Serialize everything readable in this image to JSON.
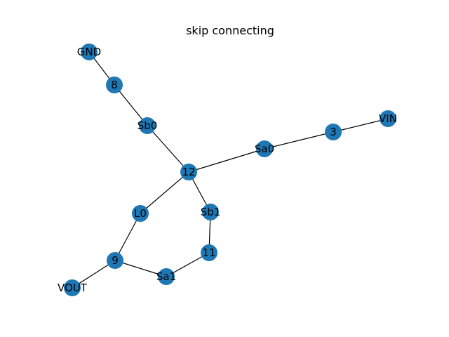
{
  "title": "skip connecting",
  "style": {
    "node_color": "#1f77b4",
    "edge_color": "#000000",
    "label_color": "#000000",
    "background": "#ffffff"
  },
  "graph": {
    "nodes": [
      {
        "id": "GND",
        "label": "GND"
      },
      {
        "id": "8",
        "label": "8"
      },
      {
        "id": "Sb0",
        "label": "Sb0"
      },
      {
        "id": "12",
        "label": "12"
      },
      {
        "id": "Sa0",
        "label": "Sa0"
      },
      {
        "id": "3",
        "label": "3"
      },
      {
        "id": "VIN",
        "label": "VIN"
      },
      {
        "id": "L0",
        "label": "L0"
      },
      {
        "id": "Sb1",
        "label": "Sb1"
      },
      {
        "id": "11",
        "label": "11"
      },
      {
        "id": "9",
        "label": "9"
      },
      {
        "id": "Sa1",
        "label": "Sa1"
      },
      {
        "id": "VOUT",
        "label": "VOUT"
      }
    ],
    "edges": [
      [
        "GND",
        "8"
      ],
      [
        "8",
        "Sb0"
      ],
      [
        "Sb0",
        "12"
      ],
      [
        "12",
        "Sa0"
      ],
      [
        "Sa0",
        "3"
      ],
      [
        "3",
        "VIN"
      ],
      [
        "12",
        "L0"
      ],
      [
        "12",
        "Sb1"
      ],
      [
        "Sb1",
        "11"
      ],
      [
        "11",
        "Sa1"
      ],
      [
        "Sa1",
        "9"
      ],
      [
        "9",
        "L0"
      ],
      [
        "9",
        "VOUT"
      ]
    ]
  }
}
